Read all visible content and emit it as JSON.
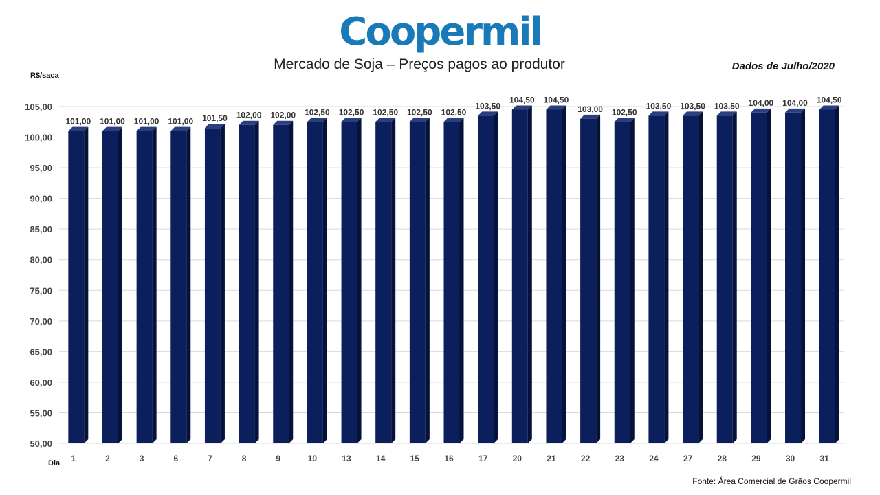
{
  "logo_text": "Coopermil",
  "colors": {
    "bar": "#0b1f5c",
    "bar_side": "#06123a",
    "bar_top": "#2a3f80",
    "grid": "#d9d9d9",
    "logo": "#1a7ab8"
  },
  "chart_data": {
    "type": "bar",
    "title": "Mercado de Soja – Preços pagos ao produtor",
    "subtitle": "Dados de Julho/2020",
    "ylabel": "R$/saca",
    "xlabel": "Dia",
    "source": "Fonte: Área Comercial de Grãos Coopermil",
    "ylim": [
      50,
      105
    ],
    "yticks": [
      "50,00",
      "55,00",
      "60,00",
      "65,00",
      "70,00",
      "75,00",
      "80,00",
      "85,00",
      "90,00",
      "95,00",
      "100,00",
      "105,00"
    ],
    "grid": true,
    "categories": [
      "1",
      "2",
      "3",
      "6",
      "7",
      "8",
      "9",
      "10",
      "13",
      "14",
      "15",
      "16",
      "17",
      "20",
      "21",
      "22",
      "23",
      "24",
      "27",
      "28",
      "29",
      "30",
      "31"
    ],
    "values": [
      101.0,
      101.0,
      101.0,
      101.0,
      101.5,
      102.0,
      102.0,
      102.5,
      102.5,
      102.5,
      102.5,
      102.5,
      103.5,
      104.5,
      104.5,
      103.0,
      102.5,
      103.5,
      103.5,
      103.5,
      104.0,
      104.0,
      104.5
    ],
    "value_labels": [
      "101,00",
      "101,00",
      "101,00",
      "101,00",
      "101,50",
      "102,00",
      "102,00",
      "102,50",
      "102,50",
      "102,50",
      "102,50",
      "102,50",
      "103,50",
      "104,50",
      "104,50",
      "103,00",
      "102,50",
      "103,50",
      "103,50",
      "103,50",
      "104,00",
      "104,00",
      "104,50"
    ]
  }
}
